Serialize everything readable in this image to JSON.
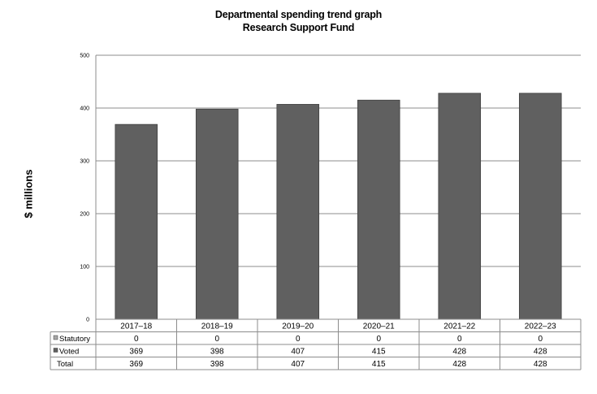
{
  "chart_data": {
    "type": "bar",
    "title": "Departmental spending trend graph",
    "subtitle": "Research Support Fund",
    "ylabel": "$ millions",
    "xlabel": "",
    "categories": [
      "2017–18",
      "2018–19",
      "2019–20",
      "2020–21",
      "2021–22",
      "2022–23"
    ],
    "series": [
      {
        "name": "Statutory",
        "values": [
          0,
          0,
          0,
          0,
          0,
          0
        ],
        "color": "#a6a6a6"
      },
      {
        "name": "Voted",
        "values": [
          369,
          398,
          407,
          415,
          428,
          428
        ],
        "color": "#606060"
      }
    ],
    "total_label": "Total",
    "totals": [
      369,
      398,
      407,
      415,
      428,
      428
    ],
    "ylim": [
      0,
      500
    ],
    "yticks": [
      0,
      100,
      200,
      300,
      400,
      500
    ],
    "grid": true,
    "legend": "data-table",
    "stacked": true
  }
}
